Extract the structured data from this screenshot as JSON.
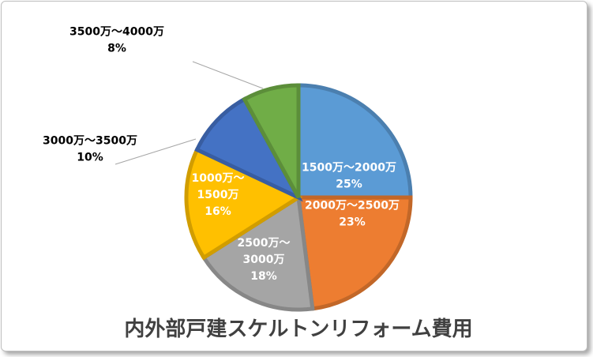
{
  "chart_data": {
    "type": "pie",
    "title": "内外部戸建スケルトンリフォーム費用",
    "start_angle_deg": 0,
    "direction": "clockwise",
    "slices": [
      {
        "label": "1500万～2000万",
        "value": 25,
        "percent_label": "25%",
        "color": "#5B9BD5"
      },
      {
        "label": "2000万～2500万",
        "value": 23,
        "percent_label": "23%",
        "color": "#ED7D31"
      },
      {
        "label": "2500万～3000万",
        "value": 18,
        "percent_label": "18%",
        "color": "#A5A5A5"
      },
      {
        "label": "1000万～1500万",
        "value": 16,
        "percent_label": "16%",
        "color": "#FFC000"
      },
      {
        "label": "3000万～3500万",
        "value": 10,
        "percent_label": "10%",
        "color": "#4472C4"
      },
      {
        "label": "3500万～4000万",
        "value": 8,
        "percent_label": "8%",
        "color": "#70AD47"
      }
    ],
    "slice_label_lines": [
      [
        "1500万～2000万",
        "25%"
      ],
      [
        "2000万～2500万",
        "23%"
      ],
      [
        "2500万～",
        "3000万",
        "18%"
      ],
      [
        "1000万～",
        "1500万",
        "16%"
      ],
      [
        "3000万～3500万",
        "10%"
      ],
      [
        "3500万～4000万",
        "8%"
      ]
    ],
    "legend": "none"
  }
}
